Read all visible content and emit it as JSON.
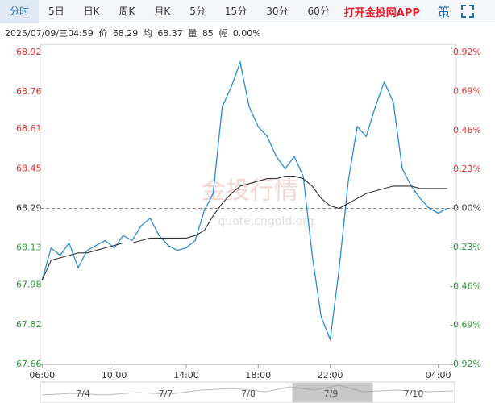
{
  "tabs": [
    "分时",
    "5日",
    "日K",
    "周K",
    "月K",
    "5分",
    "15分",
    "30分",
    "60分"
  ],
  "active_tab": 0,
  "app_link": "打开金投网APP",
  "strategy": "策",
  "info": {
    "datetime": "2025/07/09/三04:59",
    "price_label": "价",
    "price": 68.29,
    "avg_label": "均",
    "avg": 68.37,
    "vol_label": "量",
    "vol": 85,
    "amp_label": "幅",
    "amp": "0.00%"
  },
  "watermark": [
    "金投行情",
    "quote.cngold.org"
  ],
  "chart_data": {
    "type": "line",
    "x": [
      0,
      0.5,
      1,
      1.5,
      2,
      2.5,
      3,
      3.5,
      4,
      4.5,
      5,
      5.5,
      6,
      6.5,
      7,
      7.5,
      8,
      8.5,
      9,
      9.5,
      10,
      10.5,
      11,
      11.5,
      12,
      12.5,
      13,
      13.5,
      14,
      14.5,
      15,
      15.5,
      16,
      16.5,
      17,
      17.5,
      18,
      18.5,
      19,
      19.5,
      20,
      20.5,
      21,
      21.5,
      22,
      22.5
    ],
    "series": [
      {
        "name": "价",
        "color": "#2a8bd5",
        "values": [
          68.0,
          68.13,
          68.1,
          68.15,
          68.05,
          68.12,
          68.14,
          68.16,
          68.13,
          68.18,
          68.16,
          68.22,
          68.25,
          68.18,
          68.14,
          68.12,
          68.13,
          68.16,
          68.28,
          68.35,
          68.7,
          68.78,
          68.88,
          68.7,
          68.62,
          68.58,
          68.5,
          68.45,
          68.5,
          68.42,
          68.1,
          67.85,
          67.76,
          68.05,
          68.4,
          68.62,
          68.58,
          68.7,
          68.8,
          68.72,
          68.45,
          68.38,
          68.33,
          68.29,
          68.27,
          68.29
        ]
      },
      {
        "name": "均",
        "color": "#333333",
        "values": [
          68.0,
          68.08,
          68.09,
          68.1,
          68.11,
          68.11,
          68.12,
          68.13,
          68.14,
          68.15,
          68.15,
          68.16,
          68.17,
          68.17,
          68.17,
          68.17,
          68.17,
          68.18,
          68.2,
          68.26,
          68.31,
          68.35,
          68.38,
          68.39,
          68.4,
          68.41,
          68.41,
          68.42,
          68.42,
          68.41,
          68.38,
          68.33,
          68.3,
          68.29,
          68.31,
          68.33,
          68.35,
          68.36,
          68.37,
          68.38,
          68.38,
          68.38,
          68.37,
          68.37,
          68.37,
          68.37
        ]
      }
    ],
    "prev_close": 68.29,
    "up_color": "#e0302a",
    "down_color": "#2a9a3a",
    "flat_color": "#333333",
    "xlim": [
      -0.1,
      23
    ],
    "xticks": [
      {
        "value": 0,
        "label": "06:00"
      },
      {
        "value": 4,
        "label": "10:00"
      },
      {
        "value": 8,
        "label": "14:00"
      },
      {
        "value": 12,
        "label": "18:00"
      },
      {
        "value": 16,
        "label": "22:00"
      },
      {
        "value": 22,
        "label": "04:00"
      }
    ],
    "ylim": [
      67.66,
      68.92
    ],
    "yticks": [
      68.92,
      68.76,
      68.61,
      68.45,
      68.29,
      68.13,
      67.98,
      67.82,
      67.66
    ],
    "y2lim": [
      -0.92,
      0.92
    ],
    "y2ticks": [
      {
        "value": 0.92,
        "label": "0.92%"
      },
      {
        "value": 0.69,
        "label": "0.69%"
      },
      {
        "value": 0.46,
        "label": "0.46%"
      },
      {
        "value": 0.23,
        "label": "0.23%"
      },
      {
        "value": 0,
        "label": "0.00%"
      },
      {
        "value": -0.23,
        "label": "-0.23%"
      },
      {
        "value": -0.46,
        "label": "-0.46%"
      },
      {
        "value": -0.69,
        "label": "-0.69%"
      },
      {
        "value": -0.92,
        "label": "-0.92%"
      }
    ]
  },
  "navigator": {
    "dates": [
      "7/4",
      "7/7",
      "7/8",
      "7/9",
      "7/10"
    ],
    "selected": 3
  }
}
